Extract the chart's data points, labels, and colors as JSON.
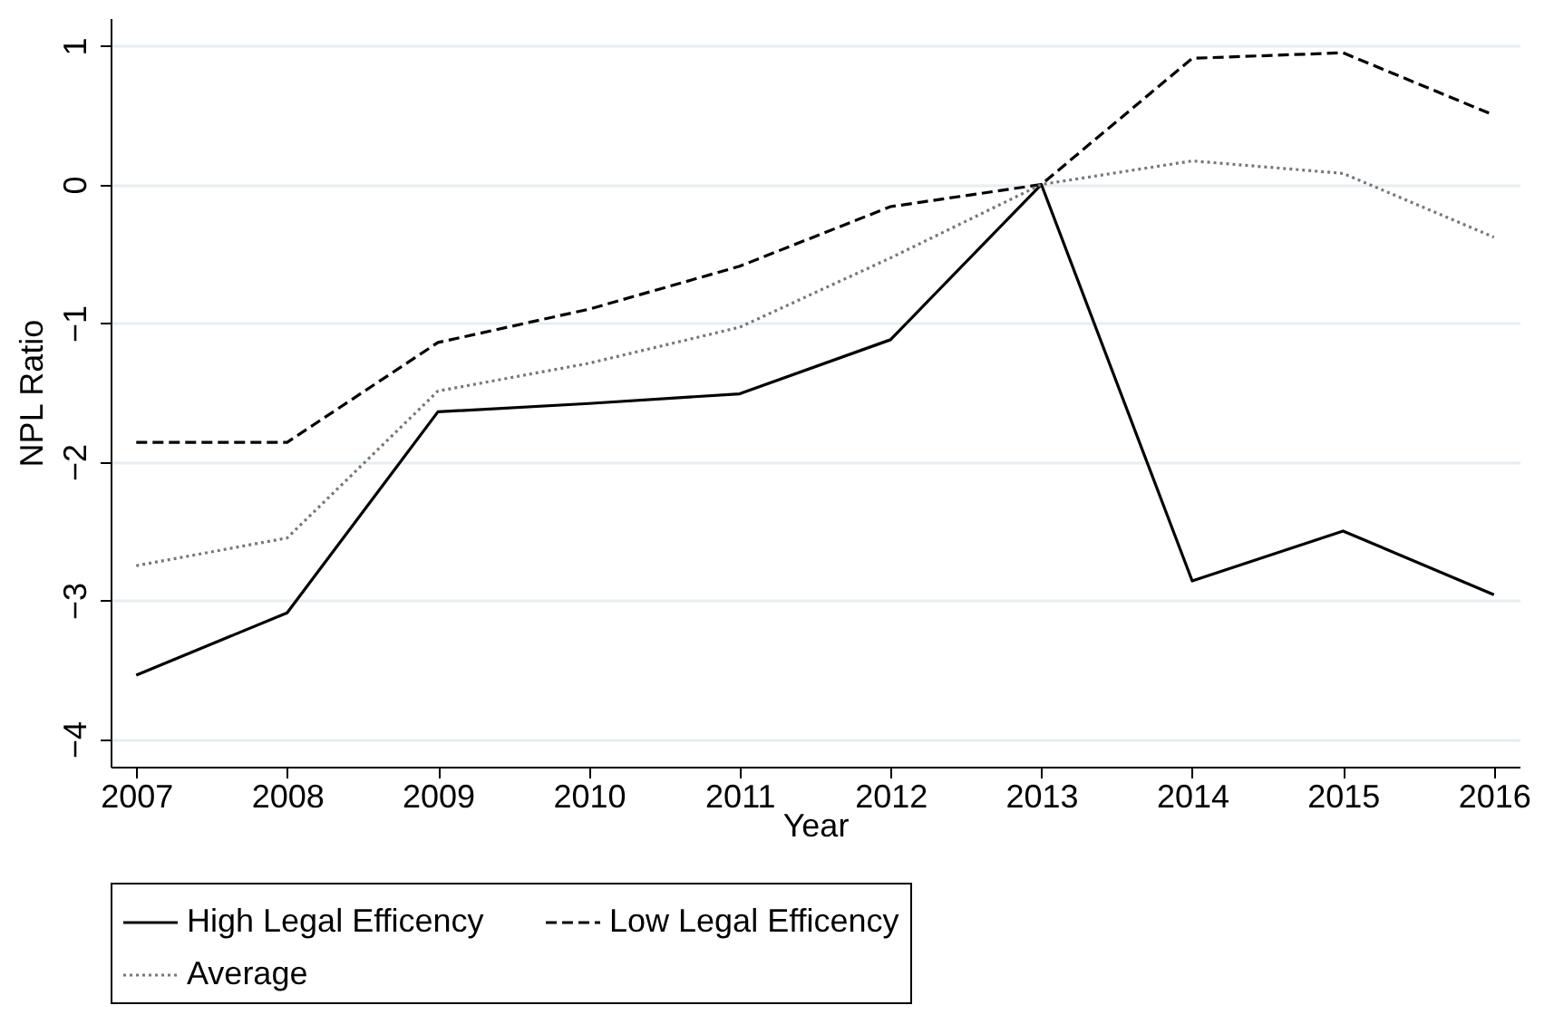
{
  "chart_data": {
    "type": "line",
    "xlabel": "Year",
    "ylabel": "NPL Ratio",
    "x": [
      2007,
      2008,
      2009,
      2010,
      2011,
      2012,
      2013,
      2014,
      2015,
      2016
    ],
    "series": [
      {
        "name": "High Legal Efficency",
        "color": "#000000",
        "line_style": "solid",
        "values": [
          -3.54,
          -3.09,
          -1.64,
          -1.58,
          -1.51,
          -1.12,
          0,
          -2.86,
          -2.5,
          -2.96
        ]
      },
      {
        "name": "Low Legal Efficency",
        "color": "#000000",
        "line_style": "dashed",
        "values": [
          -1.86,
          -1.86,
          -1.14,
          -0.9,
          -0.59,
          -0.16,
          0,
          0.91,
          0.95,
          0.5
        ]
      },
      {
        "name": "Average",
        "color": "#777777",
        "line_style": "dotted",
        "values": [
          -2.75,
          -2.55,
          -1.49,
          -1.29,
          -1.03,
          -0.53,
          0,
          0.17,
          0.08,
          -0.38
        ]
      }
    ],
    "xlim": [
      2006.83,
      2016.17
    ],
    "xticks": [
      2007,
      2008,
      2009,
      2010,
      2011,
      2012,
      2013,
      2014,
      2015,
      2016
    ],
    "ylim": [
      -4.2,
      1.2
    ],
    "yticks": [
      -4,
      -3,
      -2,
      -1,
      0,
      1
    ],
    "grid": "y",
    "legend": "bottom",
    "marker": "none"
  }
}
